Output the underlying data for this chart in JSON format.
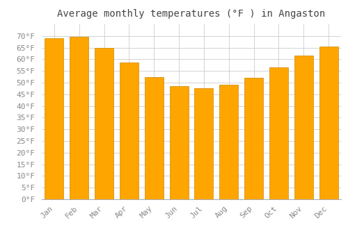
{
  "title": "Average monthly temperatures (°F ) in Angaston",
  "months": [
    "Jan",
    "Feb",
    "Mar",
    "Apr",
    "May",
    "Jun",
    "Jul",
    "Aug",
    "Sep",
    "Oct",
    "Nov",
    "Dec"
  ],
  "values": [
    69,
    69.5,
    65,
    58.5,
    52.5,
    48.5,
    47.5,
    49,
    52,
    56.5,
    61.5,
    65.5
  ],
  "bar_color": "#FFA500",
  "bar_edge_color": "#CC8800",
  "background_color": "#FFFFFF",
  "grid_color": "#CCCCCC",
  "ylim": [
    0,
    75
  ],
  "yticks": [
    0,
    5,
    10,
    15,
    20,
    25,
    30,
    35,
    40,
    45,
    50,
    55,
    60,
    65,
    70
  ],
  "title_fontsize": 10,
  "tick_fontsize": 8,
  "font_family": "monospace",
  "tick_color": "#888888",
  "title_color": "#444444"
}
